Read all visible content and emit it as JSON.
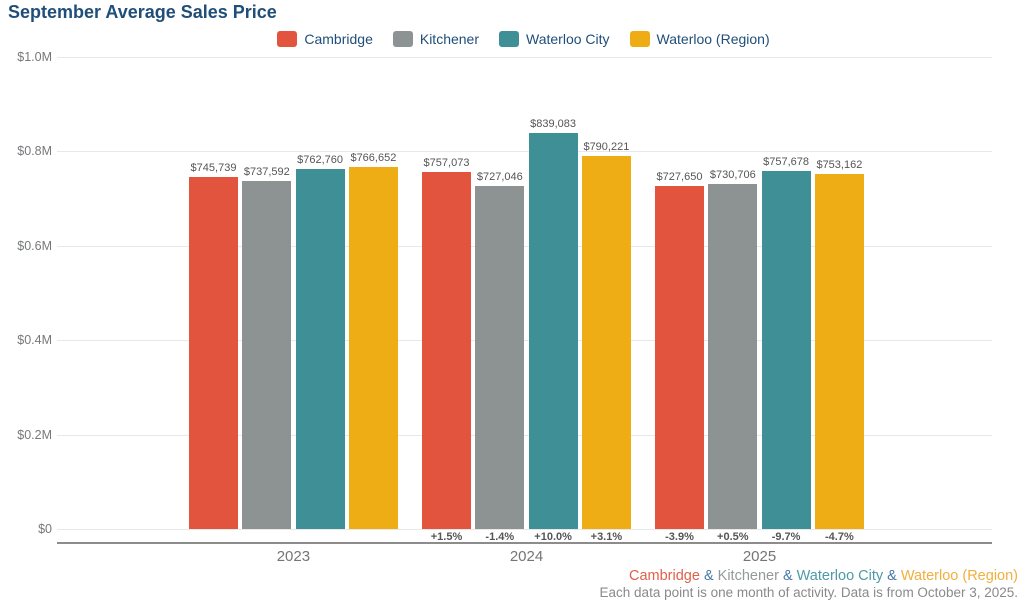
{
  "page": {
    "title": "September Average Sales Price"
  },
  "chart_data": {
    "type": "bar",
    "title": "September Average Sales Price",
    "categories": [
      "2023",
      "2024",
      "2025"
    ],
    "series": [
      {
        "name": "Cambridge",
        "color": "#E2543E",
        "values": [
          745739,
          757073,
          727650
        ],
        "pct_change": [
          "",
          "+1.5%",
          "-3.9%"
        ]
      },
      {
        "name": "Kitchener",
        "color": "#8D9293",
        "values": [
          737592,
          727046,
          730706
        ],
        "pct_change": [
          "",
          "-1.4%",
          "+0.5%"
        ]
      },
      {
        "name": "Waterloo City",
        "color": "#3F8F96",
        "values": [
          762760,
          839083,
          757678
        ],
        "pct_change": [
          "",
          "+10.0%",
          "-9.7%"
        ]
      },
      {
        "name": "Waterloo (Region)",
        "color": "#EFAD15",
        "values": [
          766652,
          790221,
          753162
        ],
        "pct_change": [
          "",
          "+3.1%",
          "-4.7%"
        ]
      }
    ],
    "xlabel": "",
    "ylabel": "",
    "ylim": [
      0,
      1000000
    ],
    "yticks": [
      {
        "label": "$1.0M",
        "value": 1000000
      },
      {
        "label": "$0.8M",
        "value": 800000
      },
      {
        "label": "$0.6M",
        "value": 600000
      },
      {
        "label": "$0.4M",
        "value": 400000
      },
      {
        "label": "$0.2M",
        "value": 200000
      },
      {
        "label": "$0",
        "value": 0
      }
    ],
    "grid": true,
    "legend_position": "top",
    "data_labels": "currency"
  },
  "footer": {
    "series_line": {
      "separator": " & ",
      "separator_color": "#4479A5",
      "items": [
        {
          "text": "Cambridge",
          "color": "#E0604A"
        },
        {
          "text": "Kitchener",
          "color": "#93999B"
        },
        {
          "text": "Waterloo City",
          "color": "#4E9AA8"
        },
        {
          "text": "Waterloo (Region)",
          "color": "#F0AF3E"
        }
      ]
    },
    "note": "Each data point is one month of activity. Data is from October 3, 2025."
  },
  "colors": {
    "title_text": "#1F4E79",
    "legend_text": "#1F4E79",
    "axis_tick_text": "#76787B",
    "data_label_text": "#555555",
    "gridline": "#E8E8E8",
    "axis_line": "#8C8C8C"
  }
}
